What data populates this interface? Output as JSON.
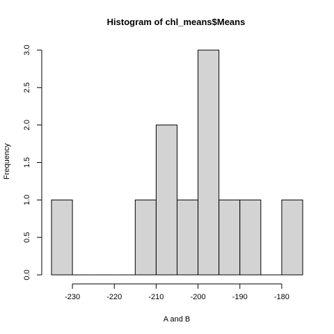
{
  "chart_data": {
    "type": "bar",
    "title": "Histogram of chl_means$Means",
    "xlabel": "A and B",
    "ylabel": "Frequency",
    "xlim": [
      -235,
      -175
    ],
    "ylim": [
      0,
      3
    ],
    "bin_width": 5,
    "bins": [
      {
        "start": -235,
        "end": -230,
        "count": 1
      },
      {
        "start": -230,
        "end": -225,
        "count": 0
      },
      {
        "start": -225,
        "end": -220,
        "count": 0
      },
      {
        "start": -220,
        "end": -215,
        "count": 0
      },
      {
        "start": -215,
        "end": -210,
        "count": 1
      },
      {
        "start": -210,
        "end": -205,
        "count": 2
      },
      {
        "start": -205,
        "end": -200,
        "count": 1
      },
      {
        "start": -200,
        "end": -195,
        "count": 3
      },
      {
        "start": -195,
        "end": -190,
        "count": 1
      },
      {
        "start": -190,
        "end": -185,
        "count": 1
      },
      {
        "start": -185,
        "end": -180,
        "count": 0
      },
      {
        "start": -180,
        "end": -175,
        "count": 1
      }
    ],
    "x_ticks": [
      "-230",
      "-220",
      "-210",
      "-200",
      "-190",
      "-180"
    ],
    "y_ticks": [
      "0.0",
      "0.5",
      "1.0",
      "1.5",
      "2.0",
      "2.5",
      "3.0"
    ],
    "bar_fill": "#d3d3d3",
    "bar_stroke": "#000000",
    "grid": false,
    "legend": "none"
  }
}
